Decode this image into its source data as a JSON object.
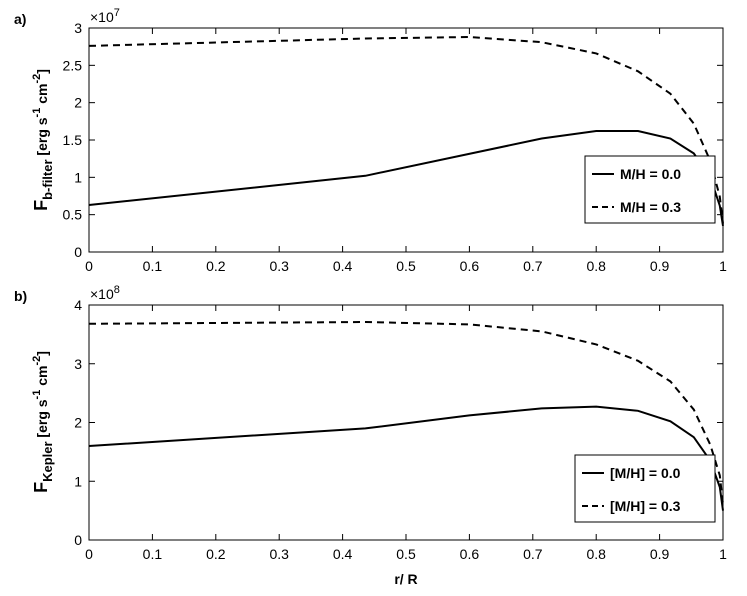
{
  "chart_data": [
    {
      "type": "line",
      "panel_label": "a)",
      "exponent_label": "×10",
      "exponent_power": "7",
      "ylabel_main": "F",
      "ylabel_sub": "b-filter",
      "ylabel_units": " [erg s",
      "ylabel_units_sup1": "-1",
      "ylabel_units_mid": " cm",
      "ylabel_units_sup2": "-2",
      "ylabel_units_end": "]",
      "xlim": [
        0,
        1
      ],
      "ylim": [
        0,
        3
      ],
      "x_ticks": [
        "0",
        "0.1",
        "0.2",
        "0.3",
        "0.4",
        "0.5",
        "0.6",
        "0.7",
        "0.8",
        "0.9",
        "1"
      ],
      "y_ticks": [
        "0",
        "0.5",
        "1",
        "1.5",
        "2",
        "2.5",
        "3"
      ],
      "legend_position": "right",
      "series": [
        {
          "name": "M/H = 0.0",
          "style": "solid",
          "x": [
            0,
            0.436,
            0.714,
            0.8,
            0.866,
            0.917,
            0.954,
            0.98,
            0.995,
            1.0
          ],
          "y": [
            0.63,
            1.02,
            1.52,
            1.62,
            1.62,
            1.52,
            1.32,
            1.0,
            0.62,
            0.35
          ]
        },
        {
          "name": "M/H = 0.3",
          "style": "dashed",
          "x": [
            0,
            0.436,
            0.6,
            0.714,
            0.8,
            0.866,
            0.917,
            0.954,
            0.98,
            0.995,
            1.0
          ],
          "y": [
            2.76,
            2.86,
            2.88,
            2.81,
            2.66,
            2.42,
            2.12,
            1.72,
            1.22,
            0.74,
            0.38
          ]
        }
      ]
    },
    {
      "type": "line",
      "panel_label": "b)",
      "exponent_label": "×10",
      "exponent_power": "8",
      "ylabel_main": "F",
      "ylabel_sub": "Kepler",
      "ylabel_units": " [erg s",
      "ylabel_units_sup1": "-1",
      "ylabel_units_mid": " cm",
      "ylabel_units_sup2": "-2",
      "ylabel_units_end": "]",
      "xlabel": "r/ R",
      "xlim": [
        0,
        1
      ],
      "ylim": [
        0,
        4
      ],
      "x_ticks": [
        "0",
        "0.1",
        "0.2",
        "0.3",
        "0.4",
        "0.5",
        "0.6",
        "0.7",
        "0.8",
        "0.9",
        "1"
      ],
      "y_ticks": [
        "0",
        "1",
        "2",
        "3",
        "4"
      ],
      "legend_position": "right",
      "series": [
        {
          "name": "[M/H] = 0.0",
          "style": "solid",
          "x": [
            0,
            0.436,
            0.6,
            0.714,
            0.8,
            0.866,
            0.917,
            0.954,
            0.98,
            0.995,
            1.0
          ],
          "y": [
            1.6,
            1.9,
            2.12,
            2.24,
            2.27,
            2.2,
            2.02,
            1.75,
            1.35,
            0.9,
            0.5
          ]
        },
        {
          "name": "[M/H] = 0.3",
          "style": "dashed",
          "x": [
            0,
            0.436,
            0.6,
            0.714,
            0.8,
            0.866,
            0.917,
            0.954,
            0.98,
            0.995,
            1.0
          ],
          "y": [
            3.68,
            3.71,
            3.67,
            3.55,
            3.33,
            3.05,
            2.7,
            2.22,
            1.62,
            1.1,
            0.6
          ]
        }
      ]
    }
  ]
}
